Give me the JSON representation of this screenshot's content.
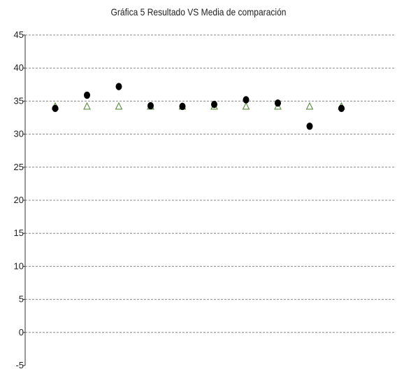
{
  "chart_data": {
    "type": "scatter",
    "title": "Gráfica 5 Resultado VS Media de comparación",
    "xlabel": "",
    "ylabel": "",
    "x": [
      1,
      2,
      3,
      4,
      5,
      6,
      7,
      8,
      9,
      10
    ],
    "ylim": [
      -5,
      45
    ],
    "y_ticks": [
      45,
      40,
      35,
      30,
      25,
      20,
      15,
      10,
      5,
      0,
      -5
    ],
    "y_tick_labels": [
      "45",
      "40",
      "35",
      "30",
      "25",
      "20",
      "15",
      "10",
      "5",
      "0",
      "-5"
    ],
    "grid": "horizontal dashed",
    "legend": "none",
    "series": [
      {
        "marker": "filled-circle",
        "color": "#000000",
        "values": [
          33.9,
          35.9,
          37.2,
          34.3,
          34.2,
          34.5,
          35.2,
          34.7,
          31.2,
          33.9
        ]
      },
      {
        "marker": "hollow-triangle",
        "color": "#5a8f3c",
        "values": [
          34.2,
          34.2,
          34.2,
          34.2,
          34.2,
          34.2,
          34.2,
          34.2,
          34.2,
          34.2
        ]
      }
    ]
  }
}
